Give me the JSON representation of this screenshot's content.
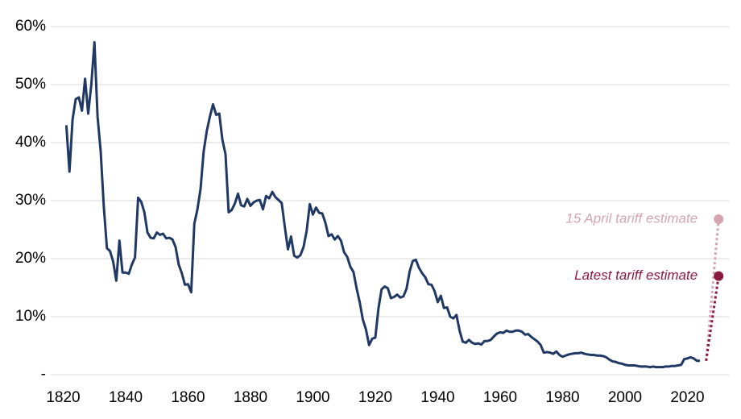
{
  "chart_data": {
    "type": "line",
    "xlim": [
      1816,
      2033.3
    ],
    "ylim": [
      0,
      60
    ],
    "xticks": [
      1820,
      1840,
      1860,
      1880,
      1900,
      1920,
      1940,
      1960,
      1980,
      2000,
      2020
    ],
    "yticks": [
      {
        "value": 0,
        "label": "-"
      },
      {
        "value": 10,
        "label": "10%"
      },
      {
        "value": 20,
        "label": "20%"
      },
      {
        "value": 30,
        "label": "30%"
      },
      {
        "value": 40,
        "label": "40%"
      },
      {
        "value": 50,
        "label": "50%"
      },
      {
        "value": 60,
        "label": "60%"
      }
    ],
    "grid": true,
    "series": [
      {
        "color": "#1f3864",
        "x": [
          1821,
          1822,
          1823,
          1824,
          1825,
          1826,
          1827,
          1828,
          1829,
          1830,
          1831,
          1832,
          1833,
          1834,
          1835,
          1836,
          1837,
          1838,
          1839,
          1840,
          1841,
          1842,
          1843,
          1844,
          1845,
          1846,
          1847,
          1848,
          1849,
          1850,
          1851,
          1852,
          1853,
          1854,
          1855,
          1856,
          1857,
          1858,
          1859,
          1860,
          1861,
          1862,
          1863,
          1864,
          1865,
          1866,
          1867,
          1868,
          1869,
          1870,
          1871,
          1872,
          1873,
          1874,
          1875,
          1876,
          1877,
          1878,
          1879,
          1880,
          1881,
          1882,
          1883,
          1884,
          1885,
          1886,
          1887,
          1888,
          1889,
          1890,
          1891,
          1892,
          1893,
          1894,
          1895,
          1896,
          1897,
          1898,
          1899,
          1900,
          1901,
          1902,
          1903,
          1904,
          1905,
          1906,
          1907,
          1908,
          1909,
          1910,
          1911,
          1912,
          1913,
          1914,
          1915,
          1916,
          1917,
          1918,
          1919,
          1920,
          1921,
          1922,
          1923,
          1924,
          1925,
          1926,
          1927,
          1928,
          1929,
          1930,
          1931,
          1932,
          1933,
          1934,
          1935,
          1936,
          1937,
          1938,
          1939,
          1940,
          1941,
          1942,
          1943,
          1944,
          1945,
          1946,
          1947,
          1948,
          1949,
          1950,
          1951,
          1952,
          1953,
          1954,
          1955,
          1956,
          1957,
          1958,
          1959,
          1960,
          1961,
          1962,
          1963,
          1964,
          1965,
          1966,
          1967,
          1968,
          1969,
          1970,
          1971,
          1972,
          1973,
          1974,
          1975,
          1976,
          1977,
          1978,
          1979,
          1980,
          1981,
          1982,
          1983,
          1984,
          1985,
          1986,
          1987,
          1988,
          1989,
          1990,
          1991,
          1992,
          1993,
          1994,
          1995,
          1996,
          1997,
          1998,
          1999,
          2000,
          2001,
          2002,
          2003,
          2004,
          2005,
          2006,
          2007,
          2008,
          2009,
          2010,
          2011,
          2012,
          2013,
          2014,
          2015,
          2016,
          2017,
          2018,
          2019,
          2020,
          2021,
          2022,
          2023,
          2024
        ],
        "values": [
          43,
          35,
          44,
          47.5,
          47.8,
          45.5,
          51,
          45,
          50,
          57.3,
          44.5,
          38.5,
          29,
          21.8,
          21.3,
          19.5,
          16.2,
          23.1,
          17.6,
          17.6,
          17.4,
          19,
          20.2,
          30.5,
          29.8,
          28,
          24.5,
          23.6,
          23.5,
          24.5,
          24.1,
          24.3,
          23.5,
          23.6,
          23.3,
          22,
          19,
          17.5,
          15.5,
          15.6,
          14.2,
          26,
          28.5,
          32,
          38.5,
          42,
          44.5,
          46.6,
          44.8,
          45,
          40.5,
          38,
          28,
          28.4,
          29.5,
          31.2,
          29.2,
          29,
          30.3,
          29.1,
          29.7,
          30,
          30.1,
          28.5,
          30.8,
          30.4,
          31.5,
          30.6,
          30.1,
          29.6,
          25.5,
          21.6,
          23.8,
          20.5,
          20.2,
          20.6,
          22,
          24.8,
          29.4,
          27.6,
          28.8,
          27.9,
          27.8,
          26.2,
          23.9,
          24.2,
          23.3,
          23.9,
          23.1,
          21.1,
          20.3,
          18.6,
          17.7,
          14.9,
          12.5,
          9.5,
          7.8,
          5.1,
          6.2,
          6.4,
          11.4,
          14.7,
          15.2,
          14.9,
          13.2,
          13.4,
          13.8,
          13.3,
          13.5,
          14.8,
          17.8,
          19.6,
          19.8,
          18.4,
          17.5,
          16.8,
          15.6,
          15.5,
          14.4,
          12.5,
          13.6,
          11.5,
          11.6,
          10,
          9.7,
          10.3,
          7.6,
          5.7,
          5.5,
          6,
          5.5,
          5.3,
          5.4,
          5.2,
          5.8,
          5.8,
          6,
          6.6,
          7.1,
          7.3,
          7.2,
          7.6,
          7.4,
          7.4,
          7.6,
          7.6,
          7.4,
          6.9,
          7,
          6.5,
          6.1,
          5.7,
          5.1,
          3.8,
          3.9,
          3.8,
          3.6,
          4,
          3.4,
          3.1,
          3.3,
          3.5,
          3.6,
          3.7,
          3.7,
          3.8,
          3.6,
          3.5,
          3.4,
          3.4,
          3.3,
          3.3,
          3.2,
          3,
          2.6,
          2.3,
          2.2,
          2,
          1.9,
          1.7,
          1.6,
          1.6,
          1.6,
          1.5,
          1.4,
          1.4,
          1.4,
          1.3,
          1.4,
          1.3,
          1.3,
          1.3,
          1.4,
          1.4,
          1.5,
          1.5,
          1.6,
          1.7,
          2.7,
          2.8,
          3,
          2.8,
          2.4,
          2.4
        ]
      }
    ],
    "annotations": [
      {
        "text": "15 April tariff estimate",
        "color": "#d4a5b0",
        "x": [
          2026,
          2030
        ],
        "values": [
          2.4,
          26.8
        ]
      },
      {
        "text": "Latest tariff estimate",
        "color": "#8b1a3f",
        "x": [
          2026,
          2030
        ],
        "values": [
          2.4,
          17.0
        ]
      }
    ]
  }
}
